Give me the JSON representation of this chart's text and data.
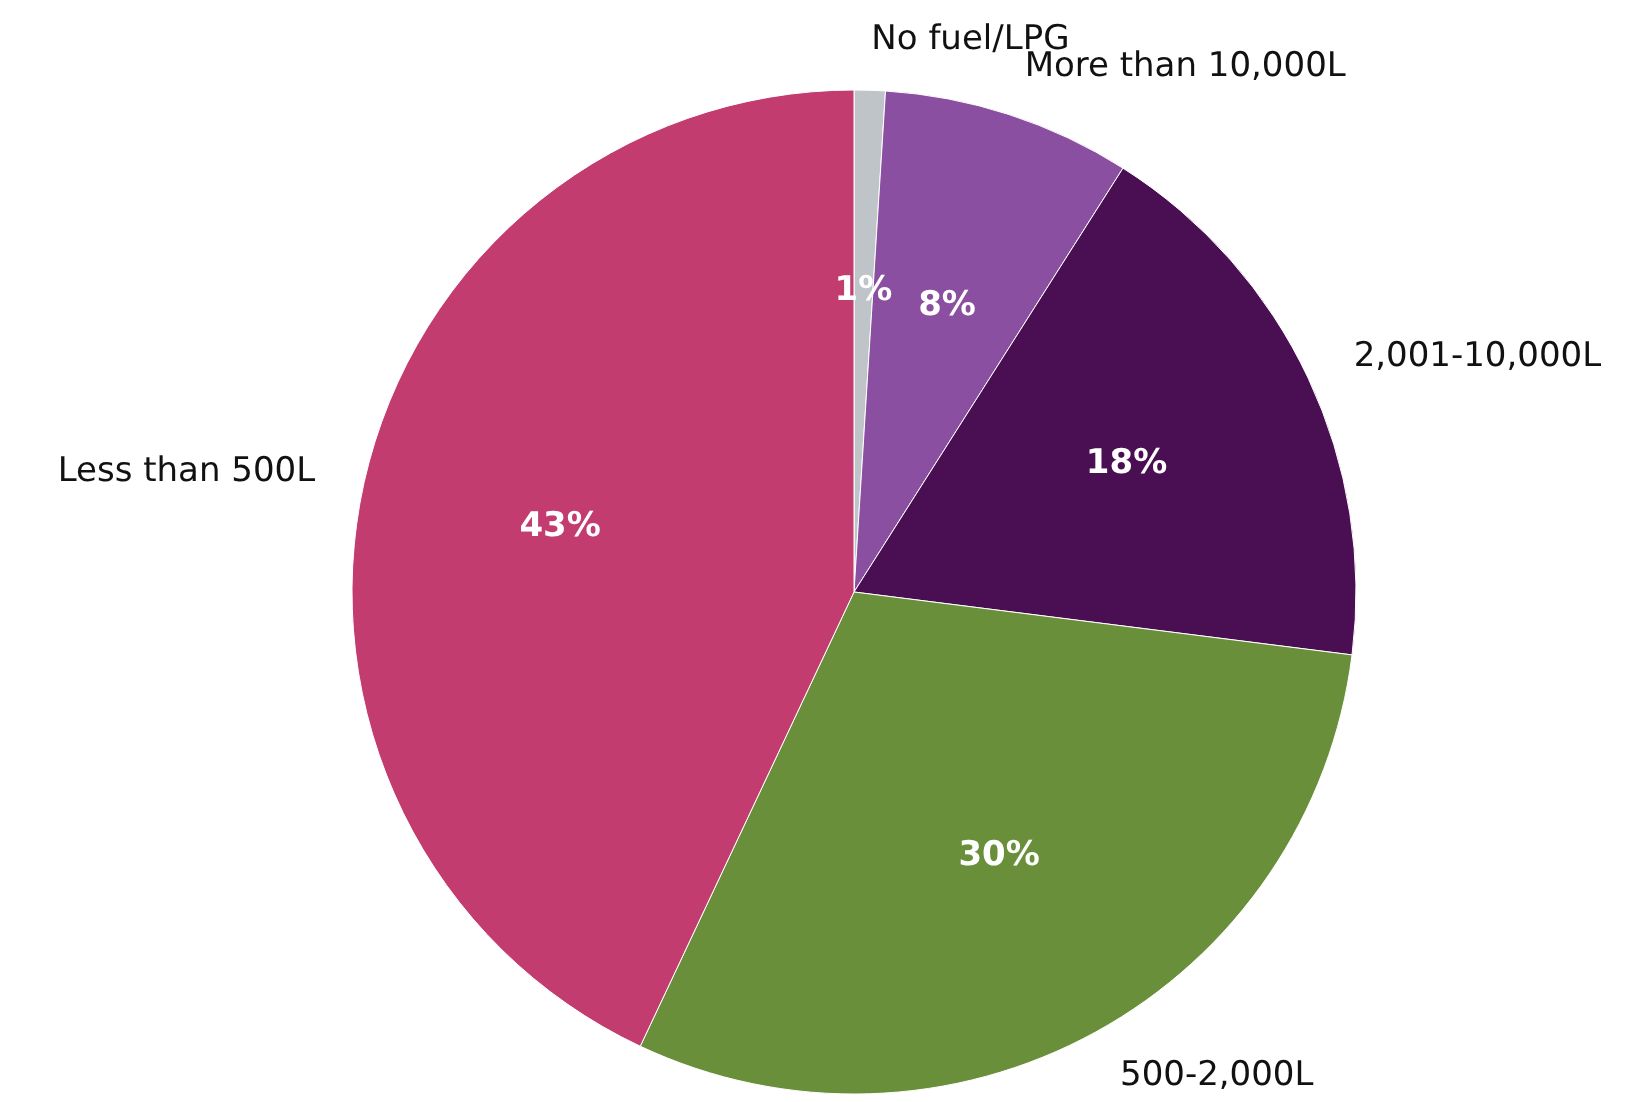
{
  "chart_data": {
    "type": "pie",
    "categories": [
      "No fuel/LPG",
      "More than 10,000L",
      "2,001-10,000L",
      "500-2,000L",
      "Less than 500L"
    ],
    "values": [
      1,
      8,
      18,
      30,
      43
    ],
    "value_labels": [
      "1%",
      "8%",
      "18%",
      "30%",
      "43%"
    ],
    "colors": [
      "#bfc4c8",
      "#8a4fa0",
      "#4a0f52",
      "#6a8f3a",
      "#c23c6f"
    ]
  }
}
